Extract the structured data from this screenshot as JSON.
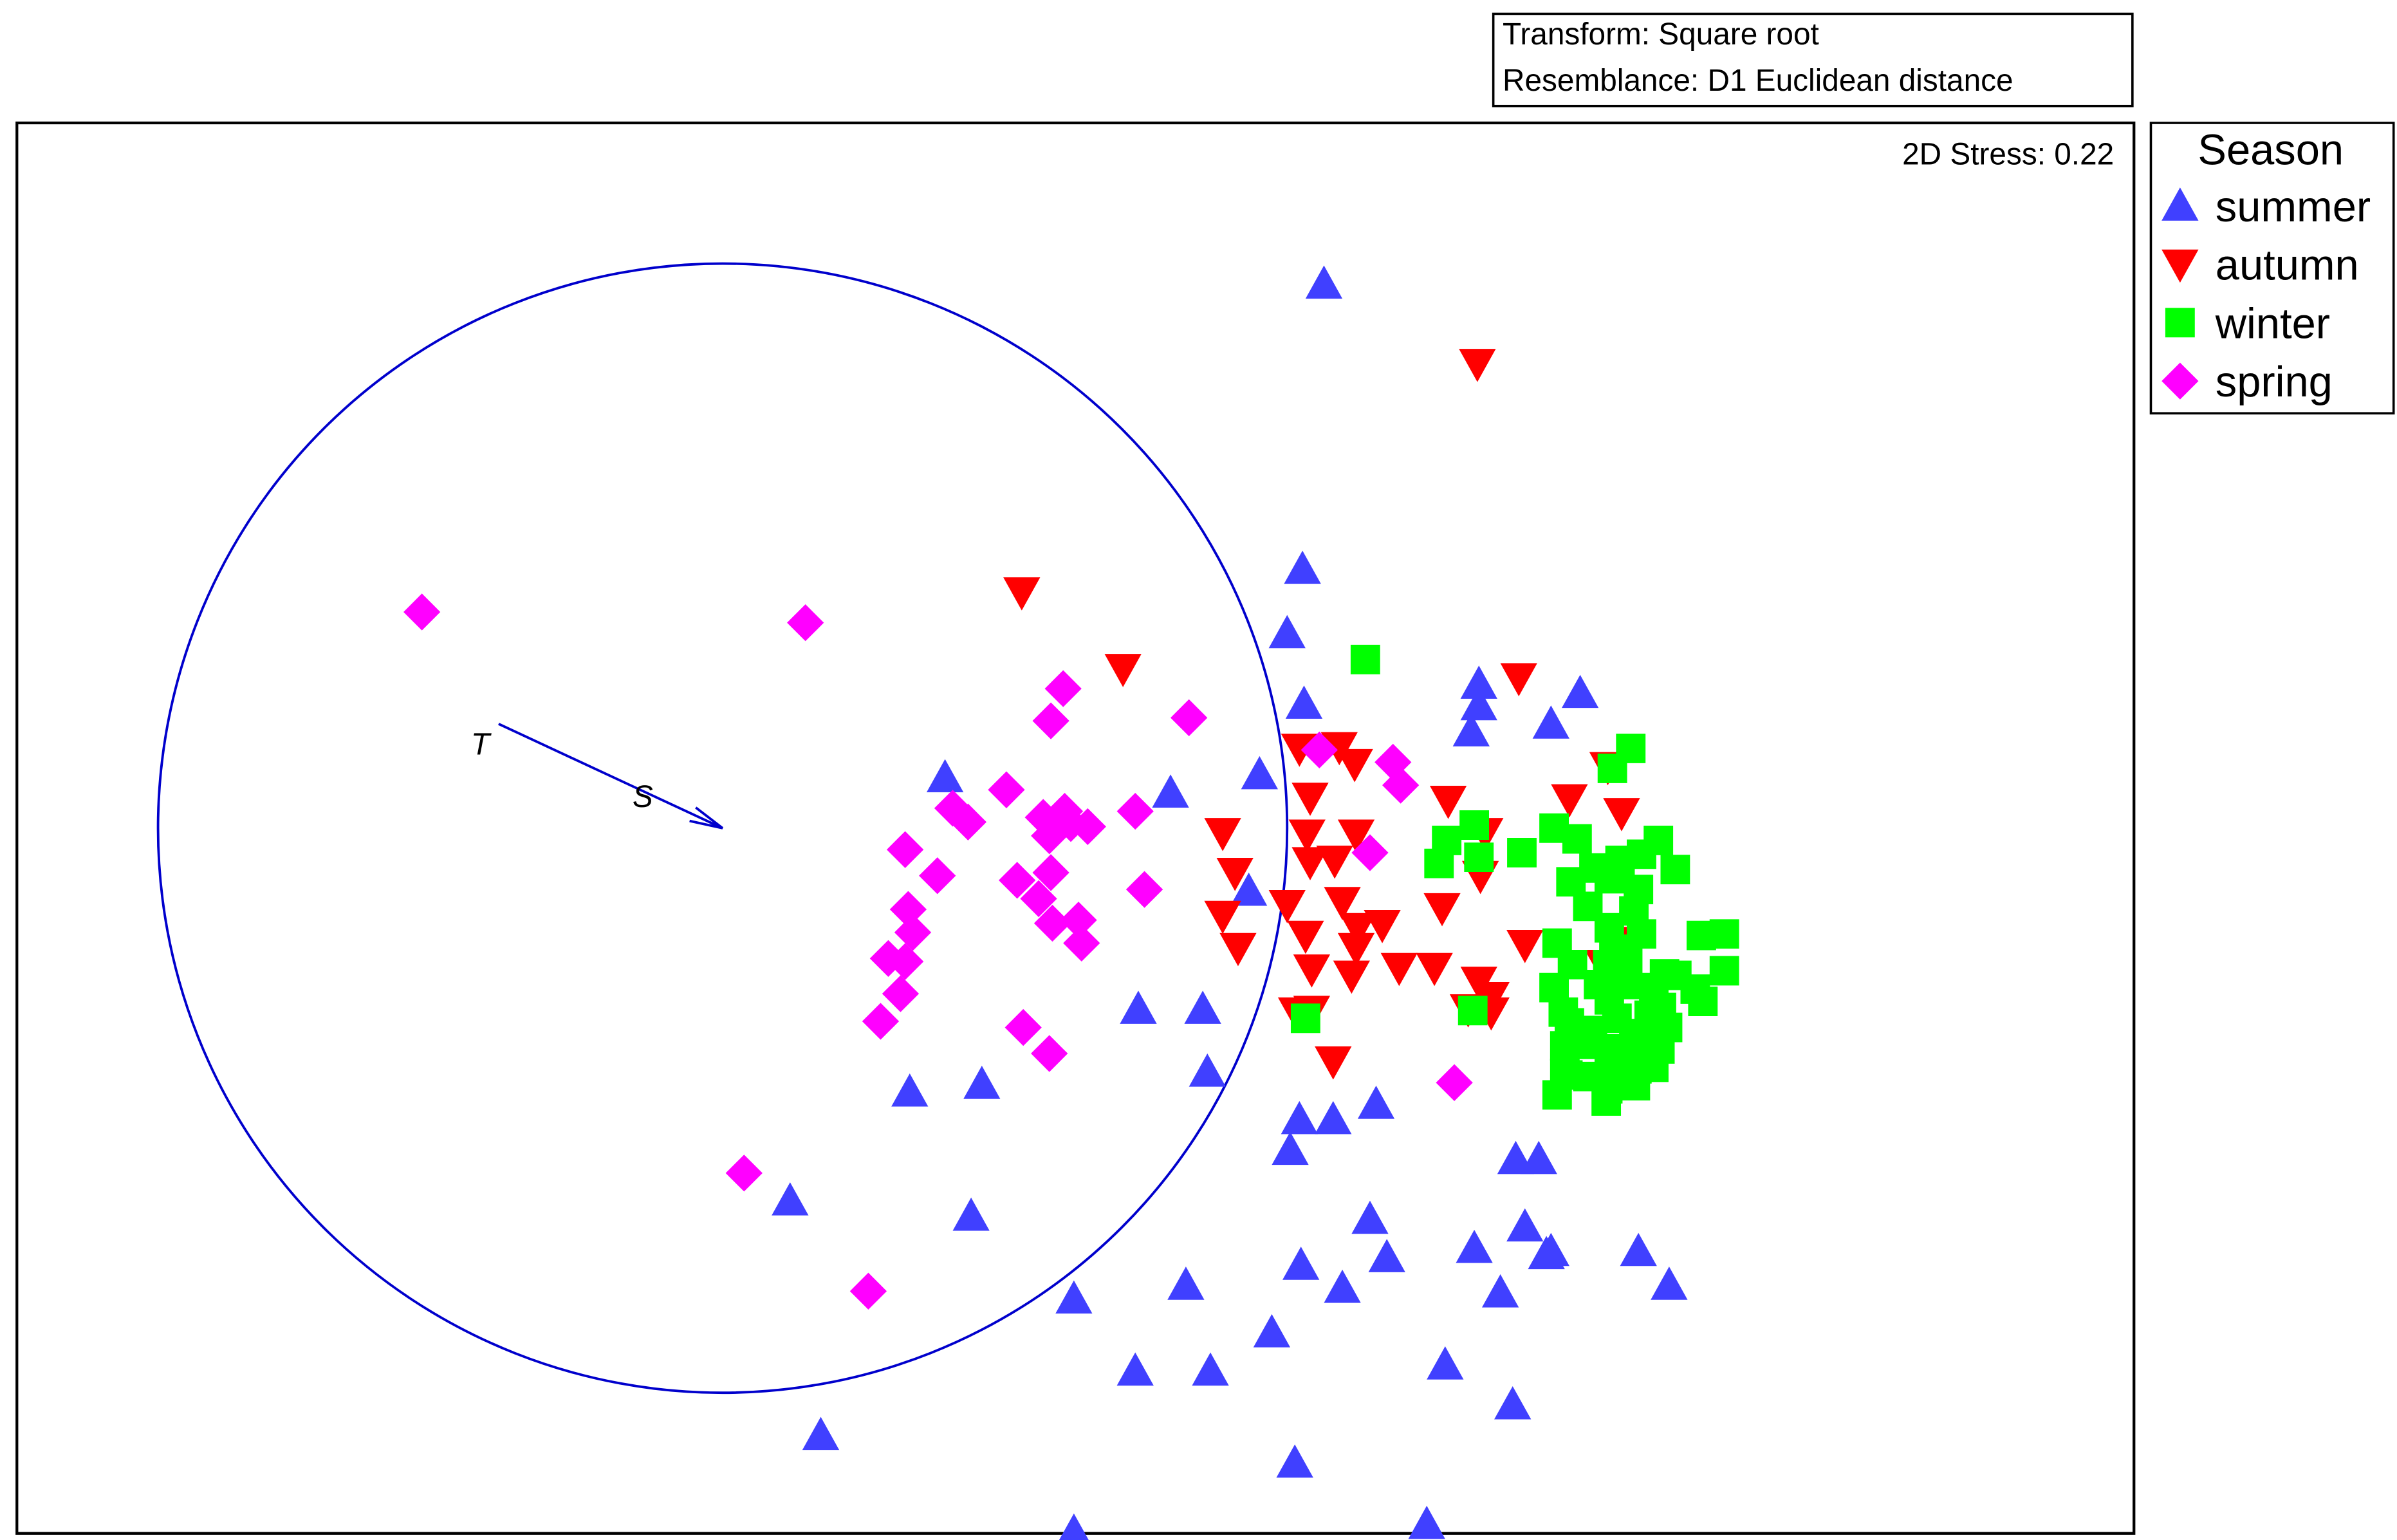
{
  "info_box": {
    "transform": "Transform: Square root",
    "resemblance": "Resemblance: D1 Euclidean distance"
  },
  "legend": {
    "title": "Season",
    "entries": [
      {
        "label": "summer",
        "marker": "triangle-up",
        "color": "#4040ff"
      },
      {
        "label": "autumn",
        "marker": "triangle-down",
        "color": "#ff0000"
      },
      {
        "label": "winter",
        "marker": "square",
        "color": "#00ff00"
      },
      {
        "label": "spring",
        "marker": "diamond",
        "color": "#ff00ff"
      }
    ]
  },
  "chart_data": {
    "type": "scatter",
    "title": "",
    "xlabel": "",
    "ylabel": "",
    "stress_label": "2D Stress: 0.22",
    "grid": false,
    "legend_position": "outside-top-right",
    "xlim": [
      0,
      1380
    ],
    "ylim": [
      0,
      920
    ],
    "vector_overlay": {
      "circle": {
        "cx": 460,
        "cy": 460,
        "r": 368
      },
      "color": "#0000cc",
      "vectors": [
        {
          "label": "S",
          "from": [
            314,
            528
          ],
          "to": [
            460,
            460
          ]
        },
        {
          "label": "T",
          "from": [
            460,
            460
          ],
          "to": [
            314,
            528
          ]
        }
      ]
    },
    "series": [
      {
        "name": "summer",
        "marker": "triangle-up",
        "color": "#4040ff",
        "points": [
          [
            852,
            815
          ],
          [
            838,
            629
          ],
          [
            828,
            587
          ],
          [
            839,
            541
          ],
          [
            953,
            554
          ],
          [
            953,
            540
          ],
          [
            948,
            523
          ],
          [
            1000,
            528
          ],
          [
            1019,
            548
          ],
          [
            605,
            493
          ],
          [
            752,
            483
          ],
          [
            810,
            495
          ],
          [
            803,
            419
          ],
          [
            731,
            342
          ],
          [
            773,
            342
          ],
          [
            776,
            301
          ],
          [
            582,
            288
          ],
          [
            629,
            293
          ],
          [
            504,
            217
          ],
          [
            622,
            207
          ],
          [
            689,
            153
          ],
          [
            830,
            250
          ],
          [
            836,
            270
          ],
          [
            858,
            270
          ],
          [
            886,
            280
          ],
          [
            983,
            200
          ],
          [
            977,
            244
          ],
          [
            992,
            244
          ],
          [
            762,
            162
          ],
          [
            837,
            175
          ],
          [
            882,
            205
          ],
          [
            893,
            180
          ],
          [
            950,
            186
          ],
          [
            997,
            182
          ],
          [
            1057,
            184
          ],
          [
            1077,
            162
          ],
          [
            864,
            160
          ],
          [
            818,
            131
          ],
          [
            729,
            106
          ],
          [
            778,
            106
          ],
          [
            931,
            110
          ],
          [
            975,
            84
          ],
          [
            524,
            64
          ],
          [
            833,
            46
          ],
          [
            689,
            1
          ],
          [
            919,
            6
          ],
          [
            967,
            157
          ],
          [
            1000,
            184
          ]
        ]
      },
      {
        "name": "autumn",
        "marker": "triangle-down",
        "color": "#ff0000",
        "points": [
          [
            952,
            763
          ],
          [
            655,
            614
          ],
          [
            721,
            564
          ],
          [
            979,
            558
          ],
          [
            836,
            512
          ],
          [
            862,
            513
          ],
          [
            872,
            502
          ],
          [
            1012,
            479
          ],
          [
            933,
            478
          ],
          [
            843,
            480
          ],
          [
            841,
            456
          ],
          [
            957,
            457
          ],
          [
            873,
            456
          ],
          [
            786,
            457
          ],
          [
            1046,
            470
          ],
          [
            794,
            431
          ],
          [
            843,
            438
          ],
          [
            859,
            439
          ],
          [
            954,
            429
          ],
          [
            864,
            412
          ],
          [
            828,
            410
          ],
          [
            786,
            403
          ],
          [
            840,
            390
          ],
          [
            890,
            397
          ],
          [
            874,
            395
          ],
          [
            929,
            408
          ],
          [
            983,
            384
          ],
          [
            873,
            382
          ],
          [
            796,
            382
          ],
          [
            1034,
            371
          ],
          [
            844,
            368
          ],
          [
            901,
            369
          ],
          [
            924,
            369
          ],
          [
            953,
            360
          ],
          [
            961,
            340
          ],
          [
            870,
            364
          ],
          [
            946,
            342
          ],
          [
            844,
            341
          ],
          [
            1042,
            386
          ],
          [
            961,
            350
          ],
          [
            834,
            340
          ],
          [
            1037,
            500
          ],
          [
            858,
            308
          ]
        ]
      },
      {
        "name": "winter",
        "marker": "square",
        "color": "#00ff00",
        "points": [
          [
            879,
            570
          ],
          [
            1052,
            512
          ],
          [
            1040,
            499
          ],
          [
            950,
            462
          ],
          [
            1002,
            460
          ],
          [
            981,
            444
          ],
          [
            953,
            441
          ],
          [
            932,
            452
          ],
          [
            927,
            437
          ],
          [
            1017,
            453
          ],
          [
            1028,
            434
          ],
          [
            1045,
            439
          ],
          [
            1070,
            452
          ],
          [
            1059,
            443
          ],
          [
            1081,
            433
          ],
          [
            1038,
            427
          ],
          [
            1024,
            409
          ],
          [
            1057,
            420
          ],
          [
            1013,
            425
          ],
          [
            1054,
            406
          ],
          [
            1038,
            395
          ],
          [
            1059,
            391
          ],
          [
            1041,
            381
          ],
          [
            1050,
            375
          ],
          [
            1098,
            390
          ],
          [
            1113,
            391
          ],
          [
            1004,
            385
          ],
          [
            1014,
            371
          ],
          [
            1037,
            371
          ],
          [
            1040,
            362
          ],
          [
            1074,
            365
          ],
          [
            1082,
            364
          ],
          [
            1031,
            358
          ],
          [
            1113,
            367
          ],
          [
            1002,
            356
          ],
          [
            1049,
            358
          ],
          [
            1067,
            356
          ],
          [
            1094,
            355
          ],
          [
            1008,
            340
          ],
          [
            1038,
            348
          ],
          [
            1012,
            333
          ],
          [
            1043,
            336
          ],
          [
            1072,
            343
          ],
          [
            1027,
            328
          ],
          [
            1027,
            319
          ],
          [
            1054,
            326
          ],
          [
            1046,
            316
          ],
          [
            1071,
            316
          ],
          [
            1099,
            347
          ],
          [
            1038,
            309
          ],
          [
            1053,
            307
          ],
          [
            1011,
            299
          ],
          [
            1056,
            303
          ],
          [
            1009,
            318
          ],
          [
            1076,
            330
          ],
          [
            1045,
            295
          ],
          [
            1004,
            286
          ],
          [
            1036,
            282
          ],
          [
            1055,
            292
          ],
          [
            1046,
            301
          ],
          [
            1067,
            304
          ],
          [
            1037,
            290
          ],
          [
            1009,
            300
          ],
          [
            1024,
            298
          ],
          [
            949,
            341
          ],
          [
            840,
            336
          ],
          [
            1064,
            338
          ],
          [
            1070,
            326
          ]
        ]
      },
      {
        "name": "spring",
        "marker": "diamond",
        "color": "#ff00ff",
        "points": [
          [
            264,
            601
          ],
          [
            514,
            594
          ],
          [
            682,
            551
          ],
          [
            674,
            530
          ],
          [
            764,
            532
          ],
          [
            897,
            503
          ],
          [
            902,
            488
          ],
          [
            849,
            511
          ],
          [
            645,
            485
          ],
          [
            610,
            473
          ],
          [
            729,
            471
          ],
          [
            683,
            471
          ],
          [
            687,
            463
          ],
          [
            669,
            467
          ],
          [
            673,
            455
          ],
          [
            698,
            461
          ],
          [
            620,
            464
          ],
          [
            579,
            446
          ],
          [
            652,
            426
          ],
          [
            600,
            429
          ],
          [
            735,
            420
          ],
          [
            674,
            431
          ],
          [
            666,
            414
          ],
          [
            581,
            407
          ],
          [
            692,
            400
          ],
          [
            694,
            385
          ],
          [
            584,
            392
          ],
          [
            568,
            375
          ],
          [
            675,
            398
          ],
          [
            579,
            373
          ],
          [
            576,
            352
          ],
          [
            563,
            334
          ],
          [
            882,
            444
          ],
          [
            656,
            330
          ],
          [
            673,
            313
          ],
          [
            937,
            294
          ],
          [
            555,
            158
          ],
          [
            474,
            235
          ]
        ]
      }
    ]
  }
}
